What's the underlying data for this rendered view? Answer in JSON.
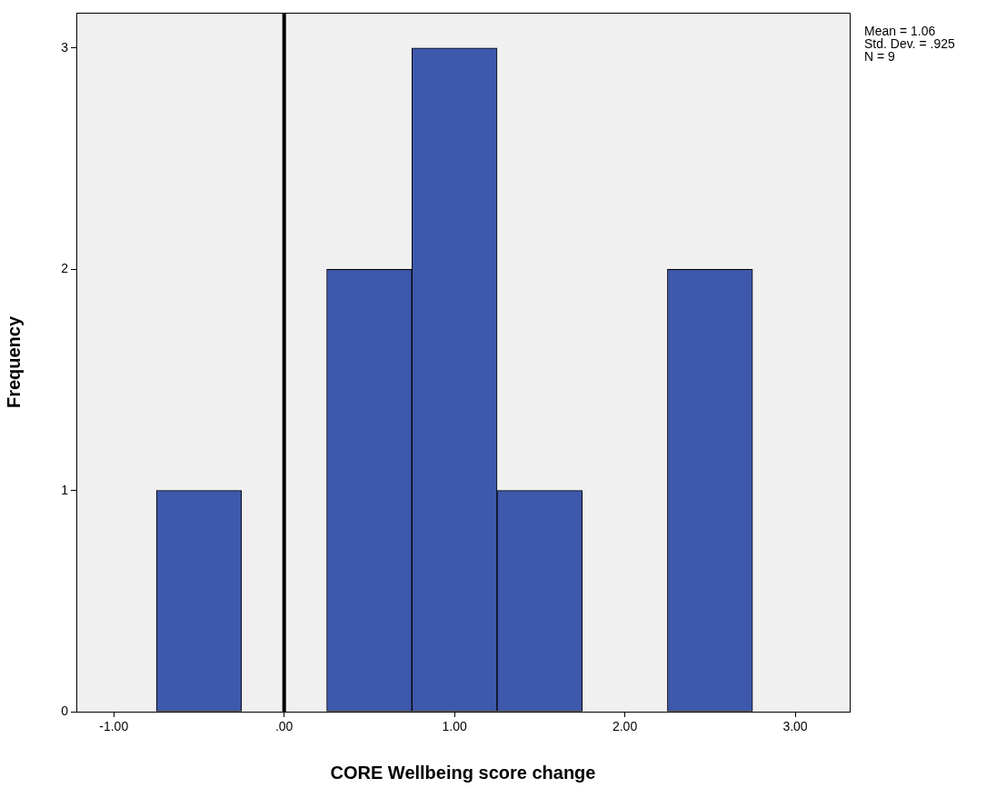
{
  "chart_data": {
    "type": "histogram",
    "xlabel": "CORE Wellbeing score change",
    "ylabel": "Frequency",
    "bins": [
      -0.75,
      -0.25,
      0.25,
      0.75,
      1.25,
      1.75,
      2.25,
      2.75
    ],
    "values": [
      1,
      0,
      2,
      3,
      1,
      0,
      2
    ],
    "color": "#3e58ac",
    "xlim": [
      -1.22,
      3.32
    ],
    "xticks": [
      {
        "value": -1,
        "label": "-1.00"
      },
      {
        "value": 0,
        "label": ".00"
      },
      {
        "value": 1,
        "label": "1.00"
      },
      {
        "value": 2,
        "label": "2.00"
      },
      {
        "value": 3,
        "label": "3.00"
      }
    ],
    "ylim": [
      0,
      3.16
    ],
    "yticks": [
      0,
      1,
      2,
      3
    ],
    "ref_lines": [
      {
        "axis": "x",
        "value": 0,
        "color": "#000000"
      }
    ],
    "annotations": [
      "Mean = 1.06",
      "Std. Dev. = .925",
      "N = 9"
    ],
    "grid": false,
    "legend": false
  }
}
